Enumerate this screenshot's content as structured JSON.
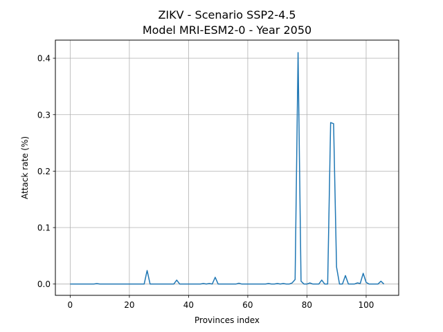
{
  "chart_data": {
    "type": "line",
    "title": "ZIKV - Scenario SSP2-4.5",
    "subtitle": "Model MRI-ESM2-0 - Year 2050",
    "xlabel": "Provinces index",
    "ylabel": "Attack rate (%)",
    "xlim": [
      -5,
      111
    ],
    "ylim": [
      -0.02,
      0.432
    ],
    "xticks": [
      0,
      20,
      40,
      60,
      80,
      100
    ],
    "yticks": [
      0.0,
      0.1,
      0.2,
      0.3,
      0.4
    ],
    "xtick_labels": [
      "0",
      "20",
      "40",
      "60",
      "80",
      "100"
    ],
    "ytick_labels": [
      "0.0",
      "0.1",
      "0.2",
      "0.3",
      "0.4"
    ],
    "grid": true,
    "series_color": "#1f77b4",
    "series": [
      {
        "x": [
          0,
          1,
          2,
          3,
          4,
          5,
          6,
          7,
          8,
          9,
          10,
          11,
          12,
          13,
          14,
          15,
          16,
          17,
          18,
          19,
          20,
          21,
          22,
          23,
          24,
          25,
          26,
          27,
          28,
          29,
          30,
          31,
          32,
          33,
          34,
          35,
          36,
          37,
          38,
          39,
          40,
          41,
          42,
          43,
          44,
          45,
          46,
          47,
          48,
          49,
          50,
          51,
          52,
          53,
          54,
          55,
          56,
          57,
          58,
          59,
          60,
          61,
          62,
          63,
          64,
          65,
          66,
          67,
          68,
          69,
          70,
          71,
          72,
          73,
          74,
          75,
          76,
          77,
          78,
          79,
          80,
          81,
          82,
          83,
          84,
          85,
          86,
          87,
          88,
          89,
          90,
          91,
          92,
          93,
          94,
          95,
          96,
          97,
          98,
          99,
          100,
          101,
          102,
          103,
          104,
          105,
          106
        ],
        "values": [
          0,
          0,
          0,
          0,
          0,
          0,
          0,
          0,
          0,
          0.0008,
          0,
          0,
          0,
          0,
          0,
          0,
          0,
          0,
          0,
          0,
          0,
          0,
          0,
          0,
          0,
          0,
          0.024,
          0,
          0,
          0,
          0,
          0,
          0,
          0,
          0,
          0,
          0.007,
          0,
          0,
          0,
          0,
          0,
          0,
          0,
          0,
          0.001,
          0,
          0.001,
          0,
          0.012,
          0,
          0,
          0,
          0,
          0,
          0,
          0,
          0.0015,
          0,
          0,
          0,
          0,
          0,
          0,
          0,
          0,
          0,
          0.001,
          0,
          0,
          0.001,
          0,
          0.001,
          0,
          0,
          0.002,
          0.008,
          0.41,
          0.005,
          0,
          0,
          0.002,
          0,
          0,
          0,
          0.007,
          0,
          0,
          0.286,
          0.284,
          0.03,
          0,
          0,
          0.015,
          0,
          0,
          0,
          0.002,
          0.001,
          0.019,
          0.003,
          0,
          0,
          0,
          0,
          0.005,
          0
        ]
      }
    ]
  }
}
